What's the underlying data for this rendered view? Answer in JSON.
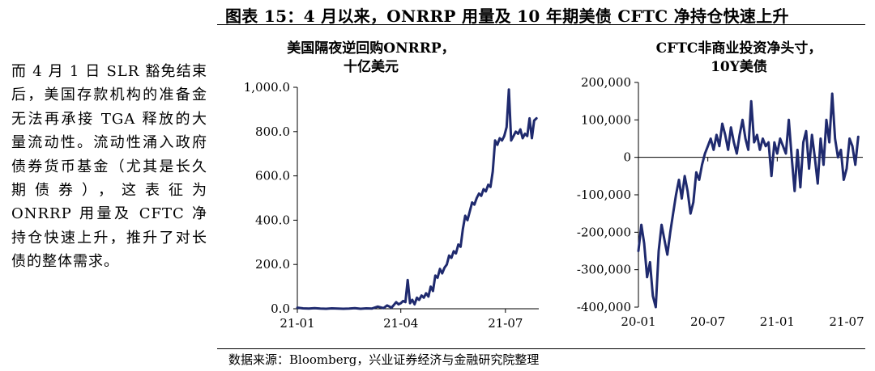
{
  "colors": {
    "series": "#1f2a6e",
    "axis": "#000000"
  },
  "left_text": "而 4 月 1 日 SLR 豁免结束后，美国存款机构的准备金无法再承接 TGA 释放的大量流动性。流动性涌入政府债券货币基金（尤其是长久期债券），这表征为 ONRRP 用量及 CFTC 净持仓快速上升，推升了对长债的整体需求。",
  "figure_title": "图表 15：4 月以来，ONRRP 用量及 10 年期美债 CFTC 净持仓快速上升",
  "source": "数据来源：Bloomberg，兴业证券经济与金融研究院整理",
  "chart_data": [
    {
      "type": "line",
      "title_line1": "美国隔夜逆回购ONRRP，",
      "title_line2": "十亿美元",
      "ylim": [
        0,
        1000
      ],
      "yticks": [
        0,
        200,
        400,
        600,
        800,
        1000
      ],
      "ytick_labels": [
        "0.0",
        "200.0",
        "400.0",
        "600.0",
        "800.0",
        "1,000.0"
      ],
      "xticks": [
        0,
        90,
        181
      ],
      "xtick_labels": [
        "21-01",
        "21-04",
        "21-07"
      ],
      "xlim": [
        0,
        210
      ],
      "x_unit": "days since 2021-01-01",
      "series": [
        {
          "x": [
            0,
            5,
            10,
            15,
            20,
            25,
            30,
            35,
            40,
            45,
            50,
            55,
            60,
            65,
            70,
            75,
            78,
            82,
            86,
            88,
            90,
            92,
            94,
            96,
            98,
            100,
            102,
            104,
            106,
            108,
            110,
            112,
            114,
            116,
            118,
            120,
            122,
            124,
            126,
            128,
            130,
            132,
            134,
            136,
            138,
            140,
            142,
            144,
            146,
            148,
            150,
            152,
            154,
            156,
            158,
            160,
            162,
            164,
            166,
            168,
            170,
            172,
            174,
            176,
            178,
            180,
            182,
            184,
            186,
            188,
            190,
            192,
            194,
            196,
            198,
            200,
            202,
            204,
            206,
            208
          ],
          "y": [
            5,
            2,
            1,
            3,
            1,
            0,
            2,
            1,
            0,
            1,
            3,
            0,
            2,
            1,
            10,
            3,
            15,
            5,
            30,
            20,
            25,
            35,
            30,
            130,
            25,
            40,
            20,
            50,
            40,
            60,
            50,
            70,
            55,
            100,
            80,
            150,
            140,
            180,
            160,
            185,
            200,
            240,
            230,
            260,
            250,
            290,
            280,
            360,
            420,
            400,
            440,
            480,
            470,
            500,
            520,
            510,
            540,
            530,
            560,
            550,
            620,
            760,
            740,
            770,
            760,
            780,
            820,
            990,
            760,
            780,
            800,
            790,
            810,
            770,
            790,
            780,
            860,
            770,
            850,
            860
          ]
        }
      ]
    },
    {
      "type": "line",
      "title_line1": "CFTC非商业投资净头寸，",
      "title_line2": "10Y美债",
      "ylim": [
        -400000,
        200000
      ],
      "yticks": [
        -400000,
        -300000,
        -200000,
        -100000,
        0,
        100000,
        200000
      ],
      "ytick_labels": [
        "-400,000",
        "-300,000",
        "-200,000",
        "-100,000",
        "0",
        "100,000",
        "200,000"
      ],
      "xticks": [
        0,
        6,
        12,
        18
      ],
      "xtick_labels": [
        "20-01",
        "20-07",
        "21-01",
        "21-07"
      ],
      "xlim": [
        0,
        19.4
      ],
      "x_unit": "months since 2020-01",
      "series": [
        {
          "x": [
            0,
            0.25,
            0.5,
            0.75,
            1,
            1.25,
            1.5,
            1.75,
            2,
            2.25,
            2.5,
            2.75,
            3,
            3.25,
            3.5,
            3.75,
            4,
            4.25,
            4.5,
            4.75,
            5,
            5.25,
            5.5,
            5.75,
            6,
            6.25,
            6.5,
            6.75,
            7,
            7.25,
            7.5,
            7.75,
            8,
            8.25,
            8.5,
            8.75,
            9,
            9.25,
            9.5,
            9.75,
            10,
            10.25,
            10.5,
            10.75,
            11,
            11.25,
            11.5,
            11.75,
            12,
            12.25,
            12.5,
            12.75,
            13,
            13.25,
            13.5,
            13.75,
            14,
            14.25,
            14.5,
            14.75,
            15,
            15.25,
            15.5,
            15.75,
            16,
            16.25,
            16.5,
            16.75,
            17,
            17.25,
            17.5,
            17.75,
            18,
            18.25,
            18.5,
            18.75,
            19
          ],
          "y": [
            -250000,
            -180000,
            -230000,
            -320000,
            -280000,
            -370000,
            -400000,
            -250000,
            -180000,
            -220000,
            -260000,
            -200000,
            -150000,
            -100000,
            -60000,
            -110000,
            -50000,
            -90000,
            -150000,
            -120000,
            -40000,
            -60000,
            -20000,
            10000,
            30000,
            50000,
            20000,
            60000,
            30000,
            90000,
            60000,
            20000,
            80000,
            40000,
            10000,
            60000,
            100000,
            50000,
            20000,
            150000,
            40000,
            60000,
            20000,
            50000,
            30000,
            40000,
            -50000,
            40000,
            10000,
            50000,
            30000,
            10000,
            100000,
            0,
            -90000,
            20000,
            -80000,
            40000,
            70000,
            -30000,
            60000,
            0,
            -70000,
            50000,
            -20000,
            100000,
            40000,
            170000,
            50000,
            0,
            20000,
            -60000,
            -30000,
            50000,
            30000,
            -20000,
            55000
          ]
        }
      ]
    }
  ]
}
